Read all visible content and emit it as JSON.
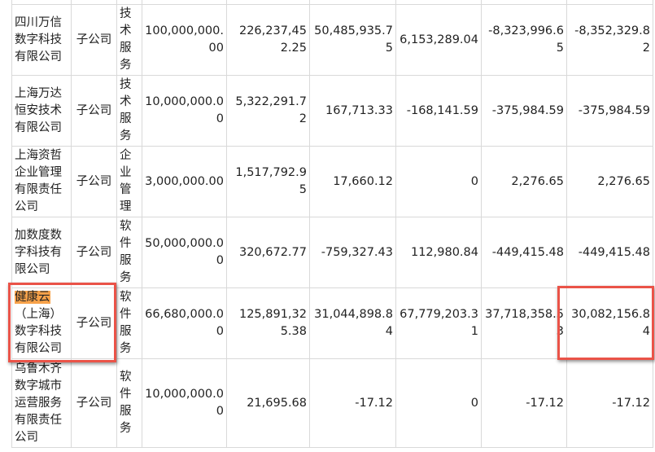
{
  "rows": [
    {
      "name": "",
      "type": "",
      "business": "务",
      "capital": "",
      "total_assets": "",
      "net_assets": "",
      "revenue": "",
      "operating_profit": "",
      "net_profit": ""
    },
    {
      "name": "四川万信数字科技有限公司",
      "type": "子公司",
      "business": "技术服务",
      "capital": "100,000,000.00",
      "total_assets": "226,237,452.25",
      "net_assets": "50,485,935.75",
      "revenue": "6,153,289.04",
      "operating_profit": "-8,323,996.65",
      "net_profit": "-8,352,329.82"
    },
    {
      "name": "上海万达恒安技术有限公司",
      "type": "子公司",
      "business": "技术服务",
      "capital": "10,000,000.00",
      "total_assets": "5,322,291.72",
      "net_assets": "167,713.33",
      "revenue": "-168,141.59",
      "operating_profit": "-375,984.59",
      "net_profit": "-375,984.59"
    },
    {
      "name": "上海资哲企业管理有限责任公司",
      "type": "子公司",
      "business": "企业管理",
      "capital": "3,000,000.00",
      "total_assets": "1,517,792.95",
      "net_assets": "17,660.12",
      "revenue": "0",
      "operating_profit": "2,276.65",
      "net_profit": "2,276.65"
    },
    {
      "name": "加数度数字科技有限公司",
      "type": "子公司",
      "business": "软件服务",
      "capital": "50,000,000.00",
      "total_assets": "320,672.77",
      "net_assets": "-759,327.43",
      "revenue": "112,980.84",
      "operating_profit": "-449,415.48",
      "net_profit": "-449,415.48"
    },
    {
      "name_highlight": "健康云",
      "name": "（上海）数字科技有限公司",
      "type": "子公司",
      "business": "软件服务",
      "capital": "66,680,000.00",
      "total_assets": "125,891,325.38",
      "net_assets": "31,044,898.84",
      "revenue": "67,779,203.31",
      "operating_profit": "37,718,358.53",
      "net_profit": "30,082,156.84"
    },
    {
      "name": "乌鲁木齐数字城市运营服务有限责任公司",
      "type": "子公司",
      "business": "软件服务",
      "capital": "10,000,000.00",
      "total_assets": "21,695.68",
      "net_assets": "-17.12",
      "revenue": "0",
      "operating_profit": "-17.12",
      "net_profit": "-17.12"
    }
  ],
  "colors": {
    "highlight": "#f7a24a",
    "annotation_box": "#ea5348",
    "grid": "#d9d9d9"
  }
}
